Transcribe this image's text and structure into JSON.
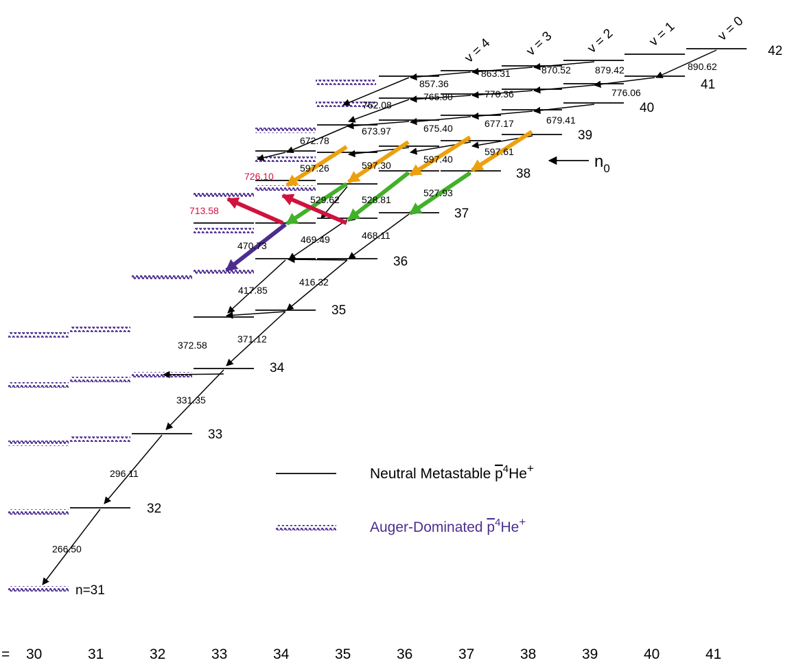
{
  "colors": {
    "metastable": "#000000",
    "auger": "#4b2d8f",
    "resonance_orange": "#eba10e",
    "resonance_green": "#43b02a",
    "resonance_red": "#d0123e",
    "resonance_purple": "#4b2d8f",
    "red_label": "#d0123e"
  },
  "diagram": {
    "n_labels": [
      "n=31",
      "32",
      "33",
      "34",
      "35",
      "36",
      "37",
      "38",
      "39",
      "40",
      "41",
      "42"
    ],
    "v_labels": [
      "v = 4",
      "v = 3",
      "v = 2",
      "v = 1",
      "v = 0"
    ],
    "n0_label": "n",
    "n0_subscript": "0",
    "l_axis_prefix": "=",
    "l_values": [
      "30",
      "31",
      "32",
      "33",
      "34",
      "35",
      "36",
      "37",
      "38",
      "39",
      "40",
      "41"
    ],
    "wavelengths": {
      "v4": [
        "266.50",
        "296.11",
        "331.35",
        "372.58",
        "417.85",
        "470.73",
        "529.62",
        "597.26",
        "672.78",
        "762.08",
        "857.36"
      ],
      "v3": [
        "371.12",
        "416.32",
        "469.49",
        "528.81",
        "597.30",
        "673.97",
        "765.80",
        "863.31"
      ],
      "v2": [
        "468.11",
        "527.93",
        "597.40",
        "675.40",
        "770.36",
        "870.52"
      ],
      "v1": [
        "597.61",
        "677.17",
        "776.06",
        "879.42"
      ],
      "v0": [
        "679.41",
        "890.62"
      ]
    },
    "red_transitions": [
      "713.58",
      "726.10"
    ]
  },
  "legend": {
    "metastable_label": "Neutral Metastable p̄⁴He⁺",
    "metastable_text": "Neutral Metastable ",
    "auger_text": "Auger-Dominated ",
    "pbar": "p",
    "sup4": "4",
    "he": "He",
    "plus": "+"
  }
}
